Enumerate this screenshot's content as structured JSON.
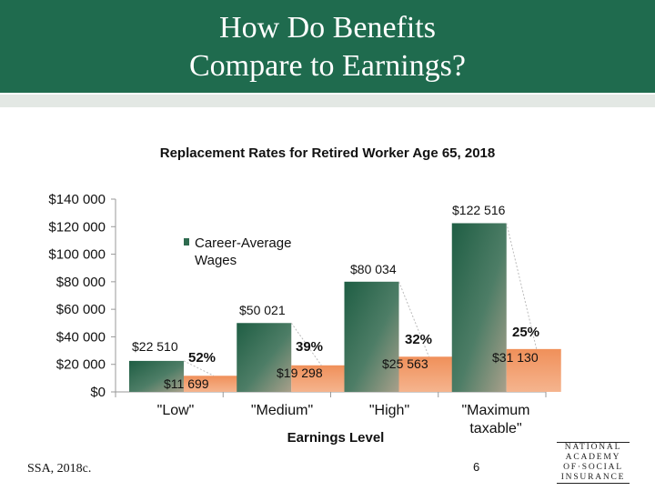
{
  "slide": {
    "title_line1": "How Do Benefits",
    "title_line2": "Compare to Earnings?",
    "source": "SSA, 2018c.",
    "page_number": "6",
    "logo_lines": [
      "NATIONAL",
      "ACADEMY",
      "OF·SOCIAL",
      "INSURANCE"
    ]
  },
  "colors": {
    "header": "#1f6b4e",
    "wages_bar": "#2e6b4f",
    "benefit_bar": "#e8804a"
  },
  "chart_data": {
    "type": "bar",
    "title": "Replacement Rates for Retired Worker Age 65, 2018",
    "xlabel": "Earnings Level",
    "ylabel": "",
    "ylim": [
      0,
      140000
    ],
    "yticks": [
      0,
      20000,
      40000,
      60000,
      80000,
      100000,
      120000,
      140000
    ],
    "ytick_labels": [
      "$0",
      "$20 000",
      "$40 000",
      "$60 000",
      "$80 000",
      "$100 000",
      "$120 000",
      "$140 000"
    ],
    "categories": [
      "\"Low\"",
      "\"Medium\"",
      "\"High\"",
      "\"Maximum taxable\""
    ],
    "legend": "Career-Average Wages",
    "series": [
      {
        "name": "Career-Average Wages",
        "values": [
          22510,
          50021,
          80034,
          122516
        ],
        "labels": [
          "$22 510",
          "$50 021",
          "$80 034",
          "$122 516"
        ]
      },
      {
        "values": [
          11699,
          19298,
          25563,
          31130
        ],
        "labels": [
          "$11 699",
          "$19 298",
          "$25 563",
          "$31 130"
        ]
      }
    ],
    "replacement_rates": [
      "52%",
      "39%",
      "32%",
      "25%"
    ]
  }
}
